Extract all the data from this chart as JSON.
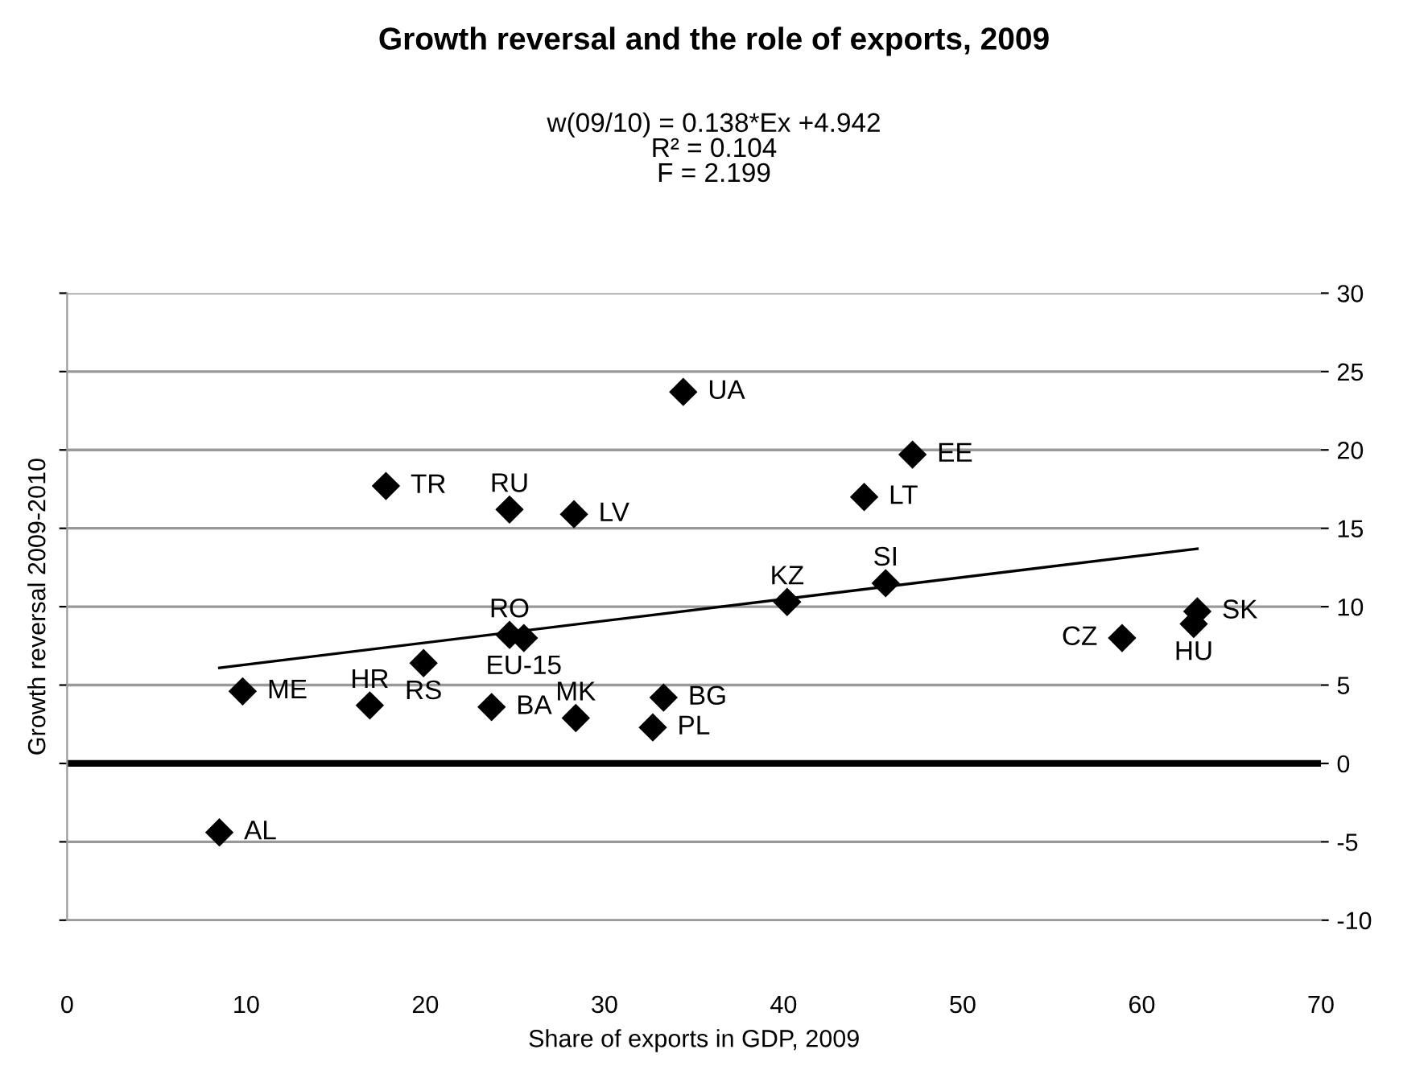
{
  "chart_data": {
    "type": "scatter",
    "title": "Growth reversal and the role of exports, 2009",
    "subtitle": "w(09/10) = 0.138*Ex +4.942\nR² = 0.104\nF = 2.199",
    "xlabel": "Share of exports in GDP, 2009",
    "ylabel": "Growth reversal 2009-2010",
    "xlim": [
      0,
      70
    ],
    "xticks": [
      0,
      10,
      20,
      30,
      40,
      50,
      60,
      70
    ],
    "ylim": [
      -10,
      30
    ],
    "yticks": [
      -10,
      -5,
      0,
      5,
      10,
      15,
      20,
      25,
      30
    ],
    "grid": "y",
    "legend": false,
    "marker": "diamond",
    "ref_lines": [
      {
        "axis": "y",
        "value": 0,
        "label": null,
        "color": "#000000"
      }
    ],
    "series": [
      {
        "color": "#000000",
        "x": [
          34.4,
          17.8,
          24.7,
          28.3,
          24.7,
          25.5,
          19.9,
          9.8,
          16.9,
          23.7,
          28.4,
          32.7,
          33.3,
          47.2,
          44.5,
          40.2,
          45.7,
          58.9,
          63.1,
          62.9,
          8.5
        ],
        "values": [
          23.7,
          17.7,
          16.2,
          15.9,
          8.2,
          8.0,
          6.4,
          4.6,
          3.7,
          3.6,
          2.9,
          2.3,
          4.2,
          19.7,
          17.0,
          10.3,
          11.5,
          8.0,
          9.7,
          8.9,
          -4.4
        ]
      },
      {
        "type": "line",
        "color": "#000000",
        "marker": "none",
        "line_style": "solid",
        "x": [
          8.5,
          63.1
        ],
        "values": [
          6.1,
          13.7
        ]
      }
    ],
    "annotations": [
      {
        "text": "UA",
        "x": 34.4,
        "y": 23.7
      },
      {
        "text": "TR",
        "x": 17.8,
        "y": 17.7
      },
      {
        "text": "RU",
        "x": 24.7,
        "y": 16.2
      },
      {
        "text": "LV",
        "x": 28.3,
        "y": 15.9
      },
      {
        "text": "RO",
        "x": 24.7,
        "y": 8.2
      },
      {
        "text": "EU-15",
        "x": 25.5,
        "y": 8.0
      },
      {
        "text": "RS",
        "x": 19.9,
        "y": 6.4
      },
      {
        "text": "ME",
        "x": 9.8,
        "y": 4.6
      },
      {
        "text": "HR",
        "x": 16.9,
        "y": 3.7
      },
      {
        "text": "BA",
        "x": 23.7,
        "y": 3.6
      },
      {
        "text": "MK",
        "x": 28.4,
        "y": 2.9
      },
      {
        "text": "PL",
        "x": 32.7,
        "y": 2.3
      },
      {
        "text": "BG",
        "x": 33.3,
        "y": 4.2
      },
      {
        "text": "EE",
        "x": 47.2,
        "y": 19.7
      },
      {
        "text": "LT",
        "x": 44.5,
        "y": 17.0
      },
      {
        "text": "KZ",
        "x": 40.2,
        "y": 10.3
      },
      {
        "text": "SI",
        "x": 45.7,
        "y": 11.5
      },
      {
        "text": "CZ",
        "x": 58.9,
        "y": 8.0
      },
      {
        "text": "SK",
        "x": 63.1,
        "y": 9.7
      },
      {
        "text": "HU",
        "x": 62.9,
        "y": 8.9
      },
      {
        "text": "AL",
        "x": 8.5,
        "y": -4.4
      }
    ]
  }
}
